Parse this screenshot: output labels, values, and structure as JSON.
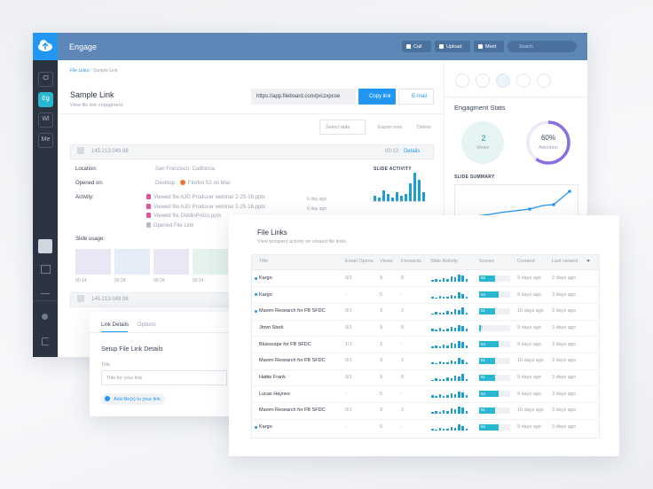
{
  "sidebar": {
    "items": [
      "Cl",
      "Eg",
      "Wl",
      "Me"
    ]
  },
  "header": {
    "title": "Engage",
    "buttons": [
      "Call",
      "Upload",
      "Meet"
    ],
    "search": "Search"
  },
  "detail": {
    "breadcrumb": {
      "parent": "File Links",
      "separator": "/",
      "current": "Sample Link"
    },
    "title": "Sample Link",
    "subtitle": "View file link engagment.",
    "url": "https://app.fileboard.com/p/czxpcoe",
    "copy": "Copy link",
    "email": "E-mail",
    "select_date": "Select date",
    "expire": "Expire now",
    "delete": "Delete",
    "visits": [
      {
        "ip": "145.213.049.98",
        "duration": "00:10",
        "details": "Details"
      },
      {
        "ip": "145.213.049.98"
      }
    ],
    "location_label": "Location:",
    "location": "San Francisco, California",
    "opened_label": "Opened on:",
    "device": "Desktop",
    "browser": "Firefox 52 on Mac",
    "activity_label": "Activity:",
    "activity": [
      {
        "text": "Viewed file AJG Producer webinar 2-25-16.pptx",
        "time": "6 day ago"
      },
      {
        "text": "Viewed file AJG Producer webinar 2-25-16.pptx",
        "time": "6 day ago"
      },
      {
        "text": "Viewed file DublinPrezo.pptx",
        "time": "6 day ago"
      },
      {
        "text": "Opened File Link"
      }
    ],
    "slide_activity": "SLIDE ACTIVITY",
    "slide_usage": "Slide usage:",
    "slide_times": [
      "00:14",
      "00:24",
      "00:24",
      "00:14"
    ]
  },
  "stats": {
    "title": "Engagment Stats",
    "views": "2",
    "views_label": "Views",
    "attention": {
      "value": 60,
      "label": "60%"
    },
    "attention_label": "Attention",
    "slide_summary": "SLIDE SUMMARY"
  },
  "link_details": {
    "tabs": [
      "Link Details",
      "Options"
    ],
    "heading": "Setup File Link Details",
    "field_label": "Title",
    "placeholder": "Title for your link",
    "add_files": "Add file(s) to your link"
  },
  "file_links": {
    "title": "File Links",
    "subtitle": "View prospect activity on shared file links.",
    "columns": [
      "Title",
      "Email Opens",
      "Views",
      "Forwards",
      "Slide Activity",
      "Scores",
      "Created",
      "Last viewed"
    ],
    "rows": [
      {
        "title": "Kargo",
        "active": true,
        "email_opens": "0/1",
        "views": "9",
        "forwards": "8",
        "score": 50,
        "created": "9 days ago",
        "last_viewed": "2 days ago"
      },
      {
        "title": "Kargo",
        "active": true,
        "email_opens": "-",
        "views": "5",
        "forwards": "-",
        "score": 64,
        "created": "9 days ago",
        "last_viewed": "3 days ago"
      },
      {
        "title": "Maven Research for FB SFDC",
        "active": true,
        "email_opens": "0/1",
        "views": "3",
        "forwards": "2",
        "score": 51,
        "created": "10 days ago",
        "last_viewed": "3 days ago"
      },
      {
        "title": "Jimm Sterk",
        "active": false,
        "email_opens": "0/1",
        "views": "9",
        "forwards": "8",
        "score": 5,
        "created": "9 days ago",
        "last_viewed": "3 days ago"
      },
      {
        "title": "Bluescape for FB SFDC",
        "active": false,
        "email_opens": "1/1",
        "views": "1",
        "forwards": "-",
        "score": 64,
        "created": "9 days ago",
        "last_viewed": "3 days ago"
      },
      {
        "title": "Maven Research for FB SFDC",
        "active": false,
        "email_opens": "0/1",
        "views": "3",
        "forwards": "2",
        "score": 51,
        "created": "10 days ago",
        "last_viewed": "3 days ago"
      },
      {
        "title": "Hattie Frank",
        "active": false,
        "email_opens": "0/1",
        "views": "9",
        "forwards": "8",
        "score": 51,
        "created": "9 days ago",
        "last_viewed": "3 days ago"
      },
      {
        "title": "Lucas Haynes",
        "active": false,
        "email_opens": "-",
        "views": "5",
        "forwards": "-",
        "score": 64,
        "created": "9 days ago",
        "last_viewed": "3 days ago"
      },
      {
        "title": "Maven Research for FB SFDC",
        "active": false,
        "email_opens": "0/1",
        "views": "3",
        "forwards": "2",
        "score": 51,
        "created": "10 days ago",
        "last_viewed": "3 days ago"
      },
      {
        "title": "Kargo",
        "active": true,
        "email_opens": "-",
        "views": "5",
        "forwards": "-",
        "score": 64,
        "created": "9 days ago",
        "last_viewed": "3 days ago"
      }
    ]
  }
}
